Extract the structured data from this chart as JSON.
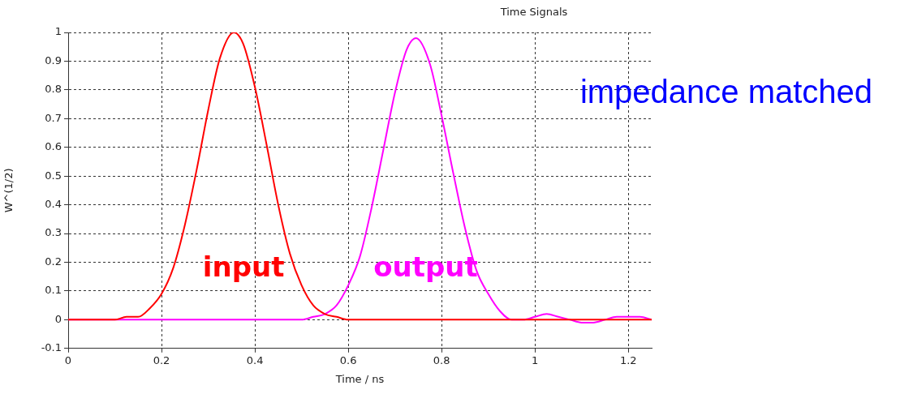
{
  "chart_data": {
    "type": "line",
    "title": "Time Signals",
    "xlabel": "Time / ns",
    "ylabel": "W^(1/2)",
    "xlim": [
      0,
      1.25
    ],
    "xticks": [
      0,
      0.2,
      0.4,
      0.6,
      0.8,
      1,
      1.2
    ],
    "ylim": [
      -0.1,
      1
    ],
    "yticks": [
      -0.1,
      0,
      0.1,
      0.2,
      0.3,
      0.4,
      0.5,
      0.6,
      0.7,
      0.8,
      0.9,
      1
    ],
    "grid": true,
    "marker": "none",
    "line_style": "solid",
    "series": [
      {
        "name": "input",
        "color": "#ff0000",
        "x": [
          0,
          0.1,
          0.125,
          0.15,
          0.175,
          0.2,
          0.225,
          0.25,
          0.275,
          0.3,
          0.325,
          0.355,
          0.375,
          0.4,
          0.425,
          0.45,
          0.475,
          0.5,
          0.525,
          0.55,
          0.575,
          0.6,
          1.25
        ],
        "values": [
          0,
          0,
          0.01,
          0.01,
          0.04,
          0.09,
          0.18,
          0.33,
          0.52,
          0.73,
          0.91,
          1,
          0.96,
          0.81,
          0.61,
          0.4,
          0.23,
          0.12,
          0.05,
          0.02,
          0.01,
          0,
          0
        ]
      },
      {
        "name": "output",
        "color": "#ff00ff",
        "x": [
          0,
          0.45,
          0.5,
          0.525,
          0.55,
          0.575,
          0.6,
          0.625,
          0.65,
          0.675,
          0.7,
          0.725,
          0.745,
          0.775,
          0.8,
          0.825,
          0.85,
          0.875,
          0.9,
          0.925,
          0.95,
          0.975,
          1,
          1.025,
          1.05,
          1.075,
          1.1,
          1.125,
          1.15,
          1.175,
          1.2,
          1.225,
          1.25
        ],
        "values": [
          0,
          0,
          0,
          0.01,
          0.02,
          0.05,
          0.12,
          0.22,
          0.39,
          0.59,
          0.79,
          0.94,
          0.98,
          0.89,
          0.71,
          0.51,
          0.32,
          0.17,
          0.09,
          0.03,
          0,
          0,
          0.01,
          0.02,
          0.01,
          0,
          -0.01,
          -0.01,
          0,
          0.01,
          0.01,
          0.01,
          0
        ]
      }
    ],
    "annotations": [
      "impedance matched"
    ]
  }
}
